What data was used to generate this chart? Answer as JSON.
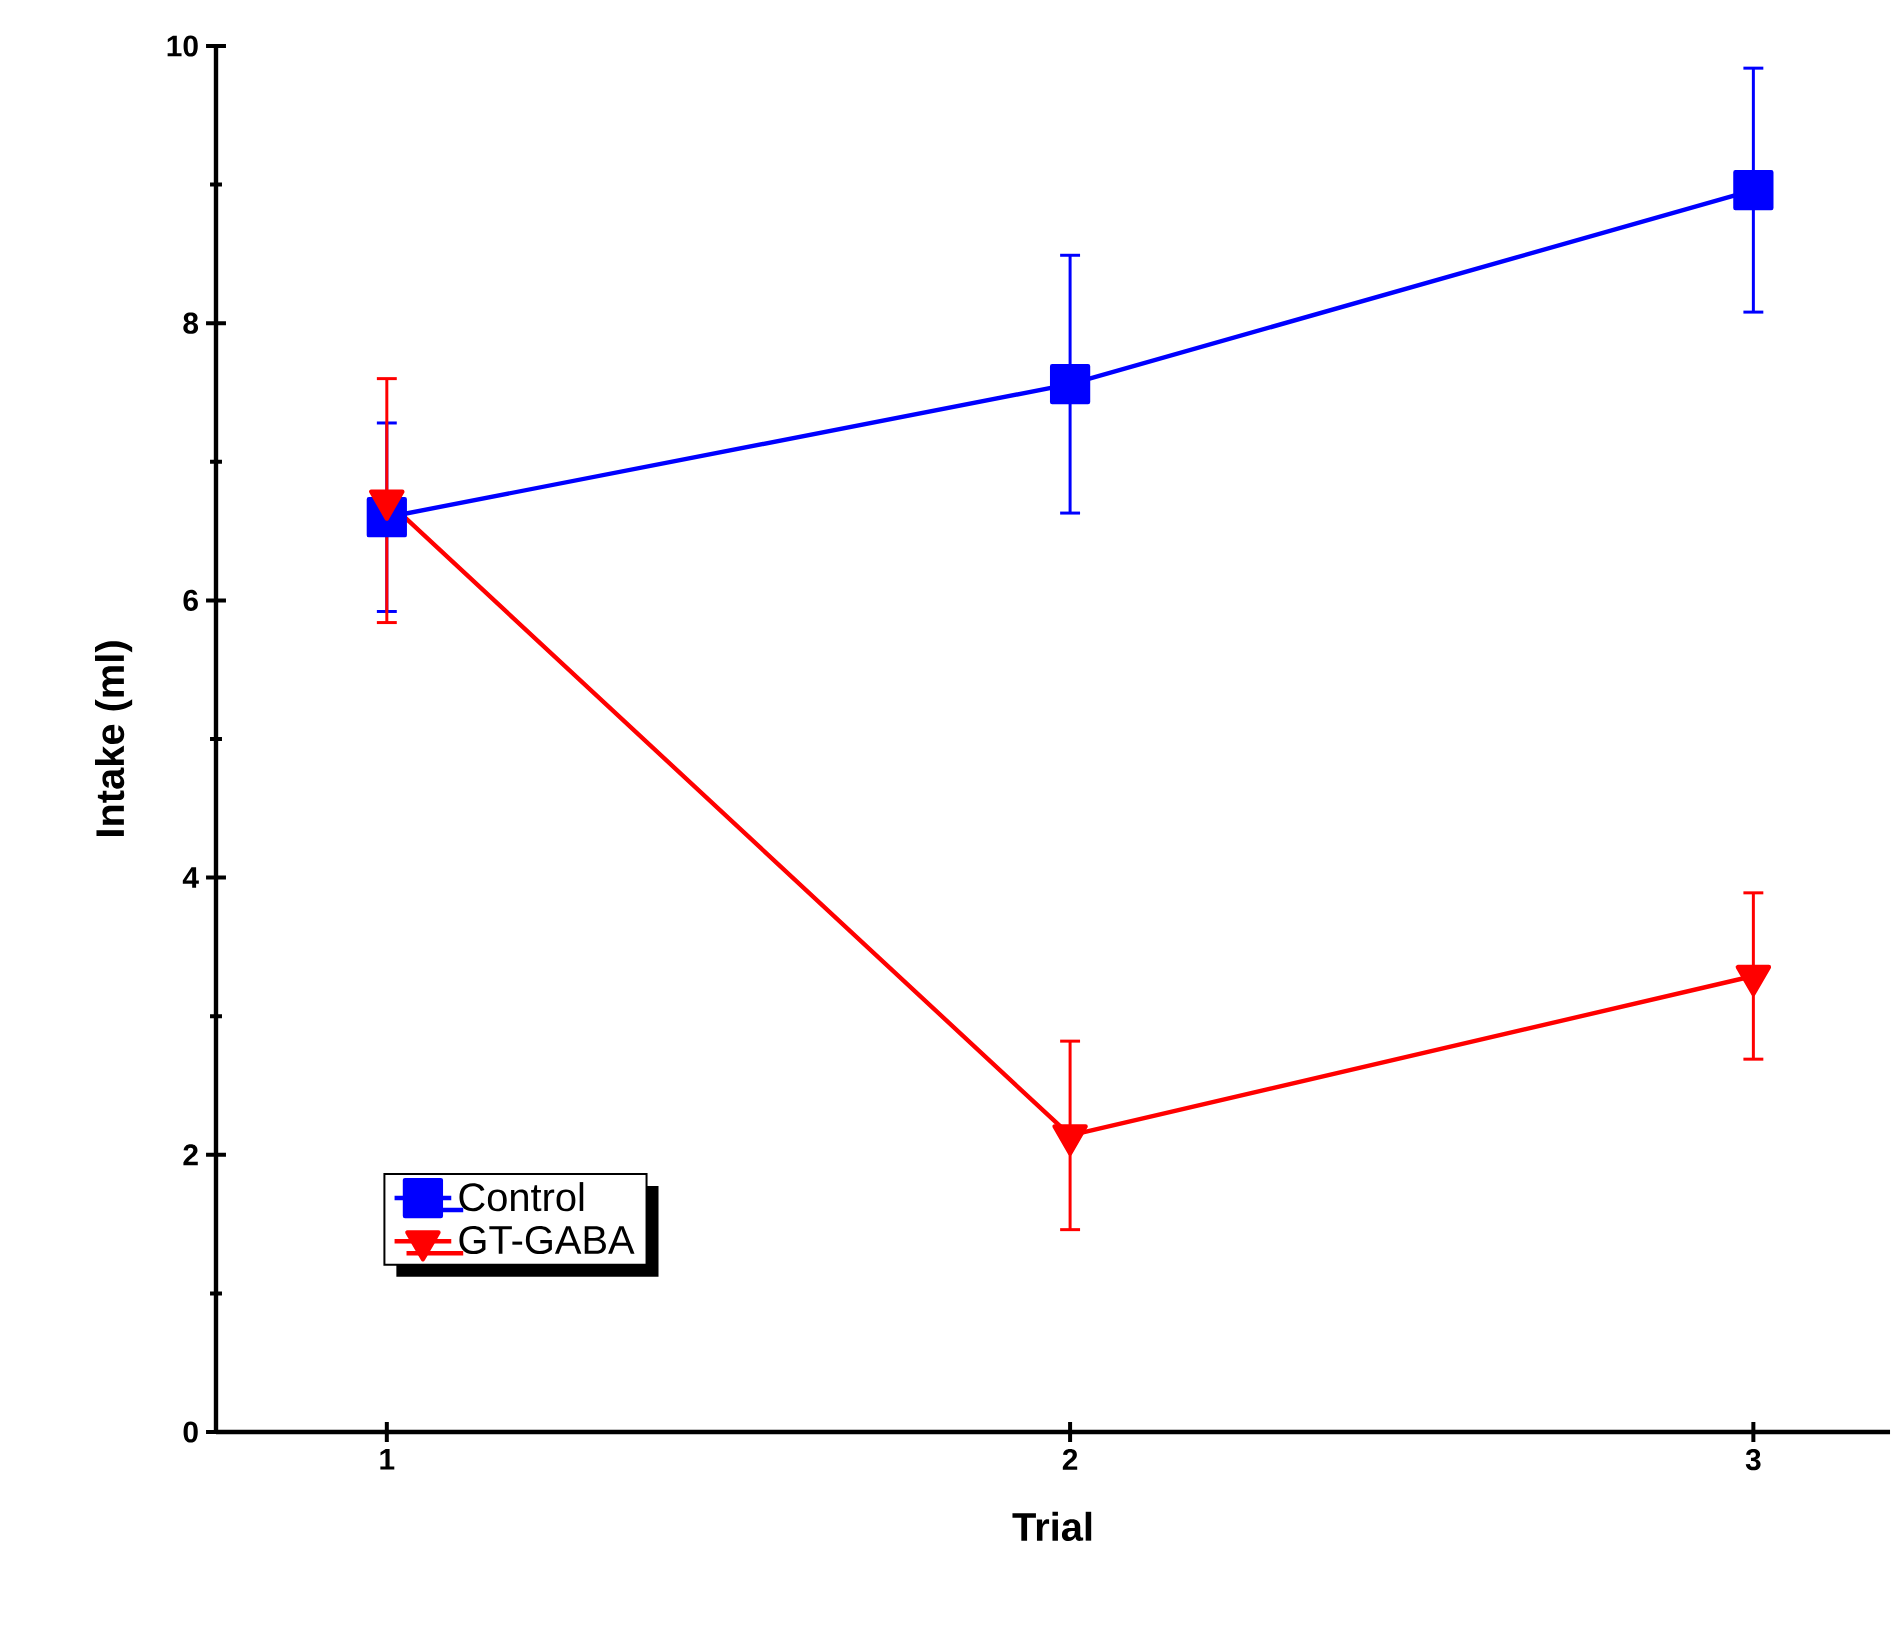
{
  "chart_data": {
    "type": "line",
    "xlabel": "Trial",
    "ylabel": "Intake (ml)",
    "x": [
      1,
      2,
      3
    ],
    "xlim": [
      0.75,
      3.2
    ],
    "xticks": [
      1,
      2,
      3
    ],
    "ylim": [
      0,
      10
    ],
    "yticks": [
      0,
      2,
      4,
      6,
      8,
      10
    ],
    "legend": "bottom left",
    "grid": false,
    "line_style": "solid",
    "series": [
      {
        "name": "Control",
        "color": "#0000ff",
        "marker": "square",
        "values": [
          6.6,
          7.56,
          8.96
        ],
        "errors": [
          0.68,
          0.93,
          0.88
        ]
      },
      {
        "name": "GT-GABA",
        "color": "#ff0000",
        "marker": "triangle",
        "values": [
          6.72,
          2.14,
          3.29
        ],
        "errors": [
          0.88,
          0.68,
          0.6
        ]
      }
    ]
  }
}
